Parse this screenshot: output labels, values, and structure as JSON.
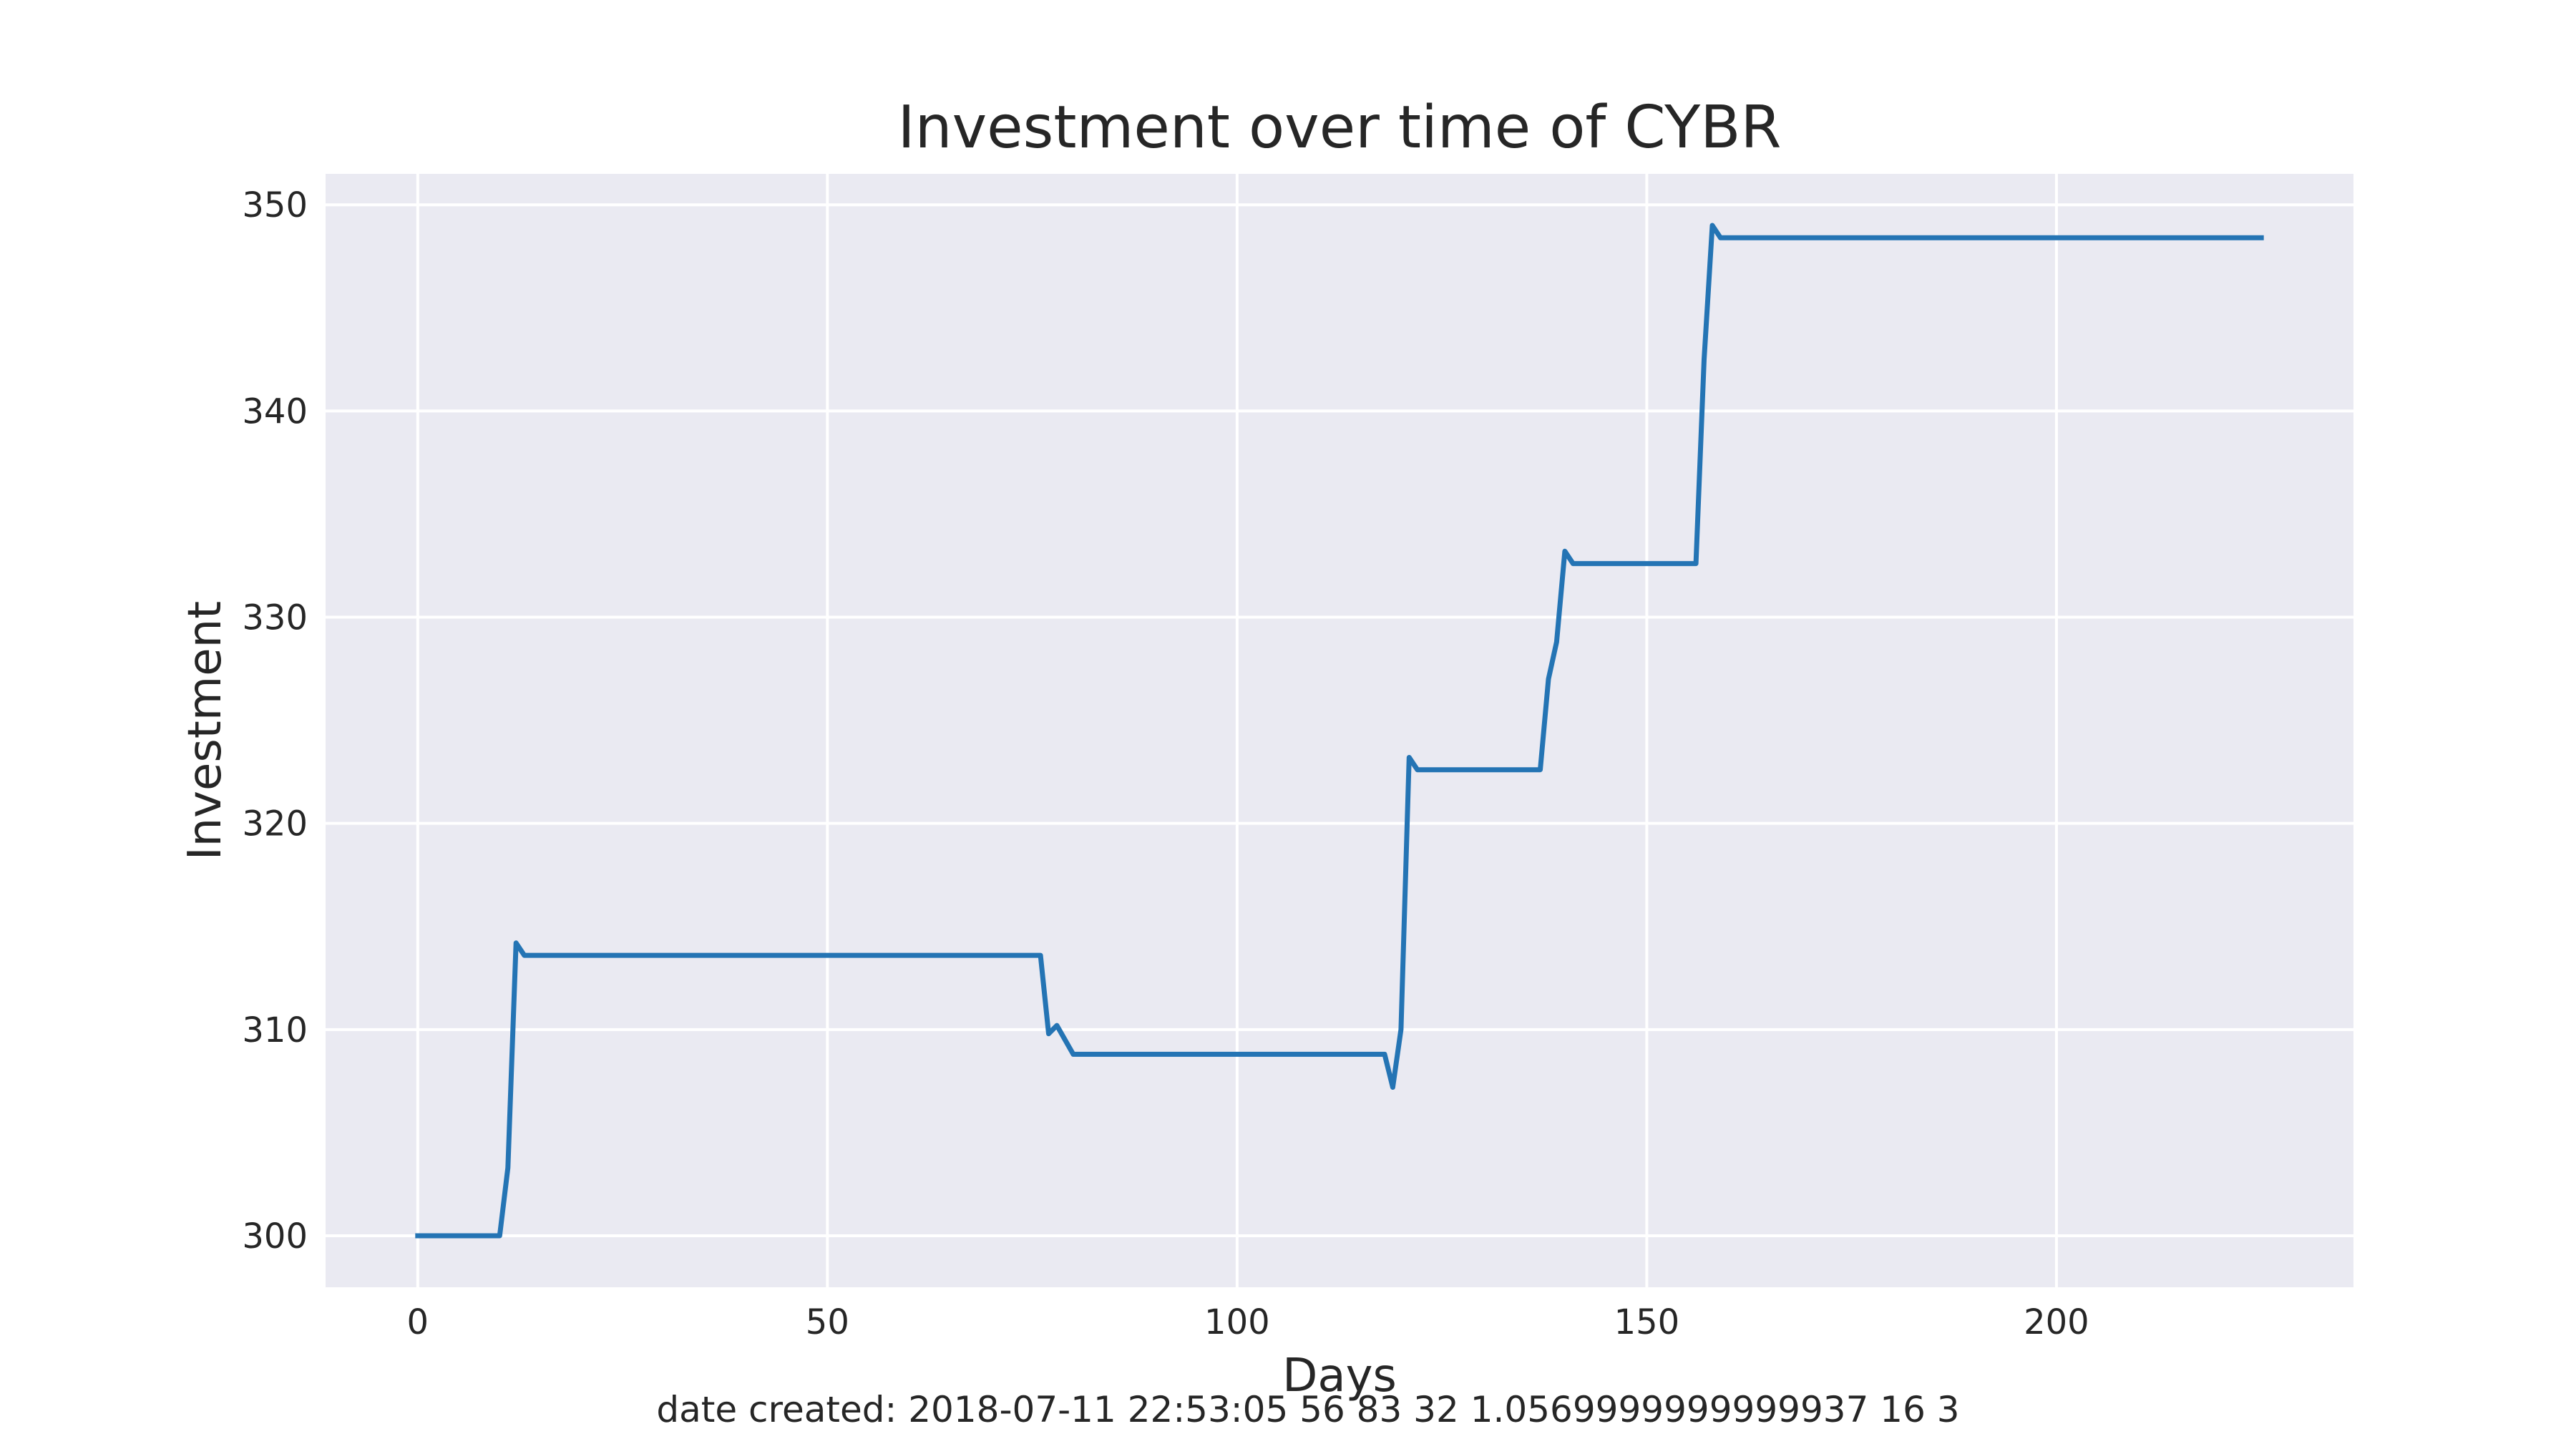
{
  "chart_data": {
    "type": "line",
    "title": "Investment over time of CYBR",
    "xlabel": "Days",
    "ylabel": "Investment",
    "xlim": [
      -11.25,
      236.25
    ],
    "ylim": [
      297.5,
      351.5
    ],
    "xticks": [
      0,
      50,
      100,
      150,
      200
    ],
    "xtick_labels": [
      "0",
      "50",
      "100",
      "150",
      "200"
    ],
    "yticks": [
      300,
      310,
      320,
      330,
      340,
      350
    ],
    "ytick_labels": [
      "300",
      "310",
      "320",
      "330",
      "340",
      "350"
    ],
    "grid": true,
    "legend": false,
    "style": "seaborn-darkgrid",
    "colors": {
      "plot_background": "#eaeaf2",
      "grid": "#ffffff",
      "line": "#2474b4",
      "text": "#262626"
    },
    "series": [
      {
        "x": [
          0,
          10,
          11,
          12,
          13,
          76,
          77,
          78,
          80,
          118,
          119,
          120,
          121,
          122,
          137,
          138,
          139,
          140,
          141,
          156,
          157,
          158,
          159,
          225
        ],
        "y": [
          300.0,
          300.0,
          303.3,
          314.2,
          313.6,
          313.6,
          309.8,
          310.2,
          308.8,
          308.8,
          307.2,
          310.0,
          323.2,
          322.6,
          322.6,
          327.0,
          328.8,
          333.2,
          332.6,
          332.6,
          342.5,
          349.0,
          348.4,
          348.4
        ]
      }
    ]
  },
  "footer": {
    "text": "date created: 2018-07-11 22:53:05 56 83 32 1.0569999999999937 16 3"
  }
}
